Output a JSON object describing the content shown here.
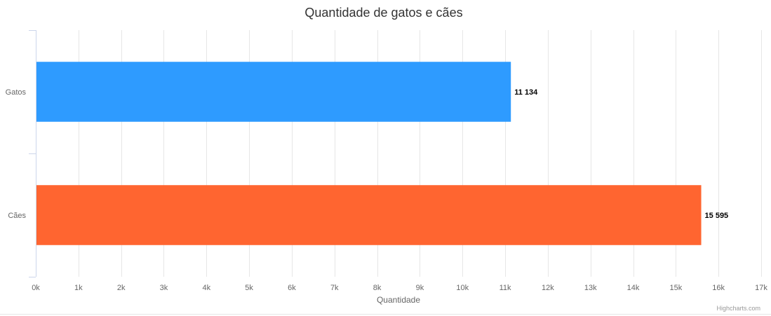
{
  "chart_data": {
    "type": "bar",
    "orientation": "horizontal",
    "title": "Quantidade de gatos e cães",
    "xlabel": "Quantidade",
    "ylabel": "",
    "categories": [
      "Gatos",
      "Cães"
    ],
    "values": [
      11134,
      15595
    ],
    "value_labels": [
      "11 134",
      "15 595"
    ],
    "colors": [
      "#2e9bff",
      "#ff6530"
    ],
    "xlim": [
      0,
      17000
    ],
    "ticks": [
      0,
      1000,
      2000,
      3000,
      4000,
      5000,
      6000,
      7000,
      8000,
      9000,
      10000,
      11000,
      12000,
      13000,
      14000,
      15000,
      16000,
      17000
    ],
    "tick_labels": [
      "0k",
      "1k",
      "2k",
      "3k",
      "4k",
      "5k",
      "6k",
      "7k",
      "8k",
      "9k",
      "10k",
      "11k",
      "12k",
      "13k",
      "14k",
      "15k",
      "16k",
      "17k"
    ],
    "grid": true,
    "credits": "Highcharts.com"
  }
}
